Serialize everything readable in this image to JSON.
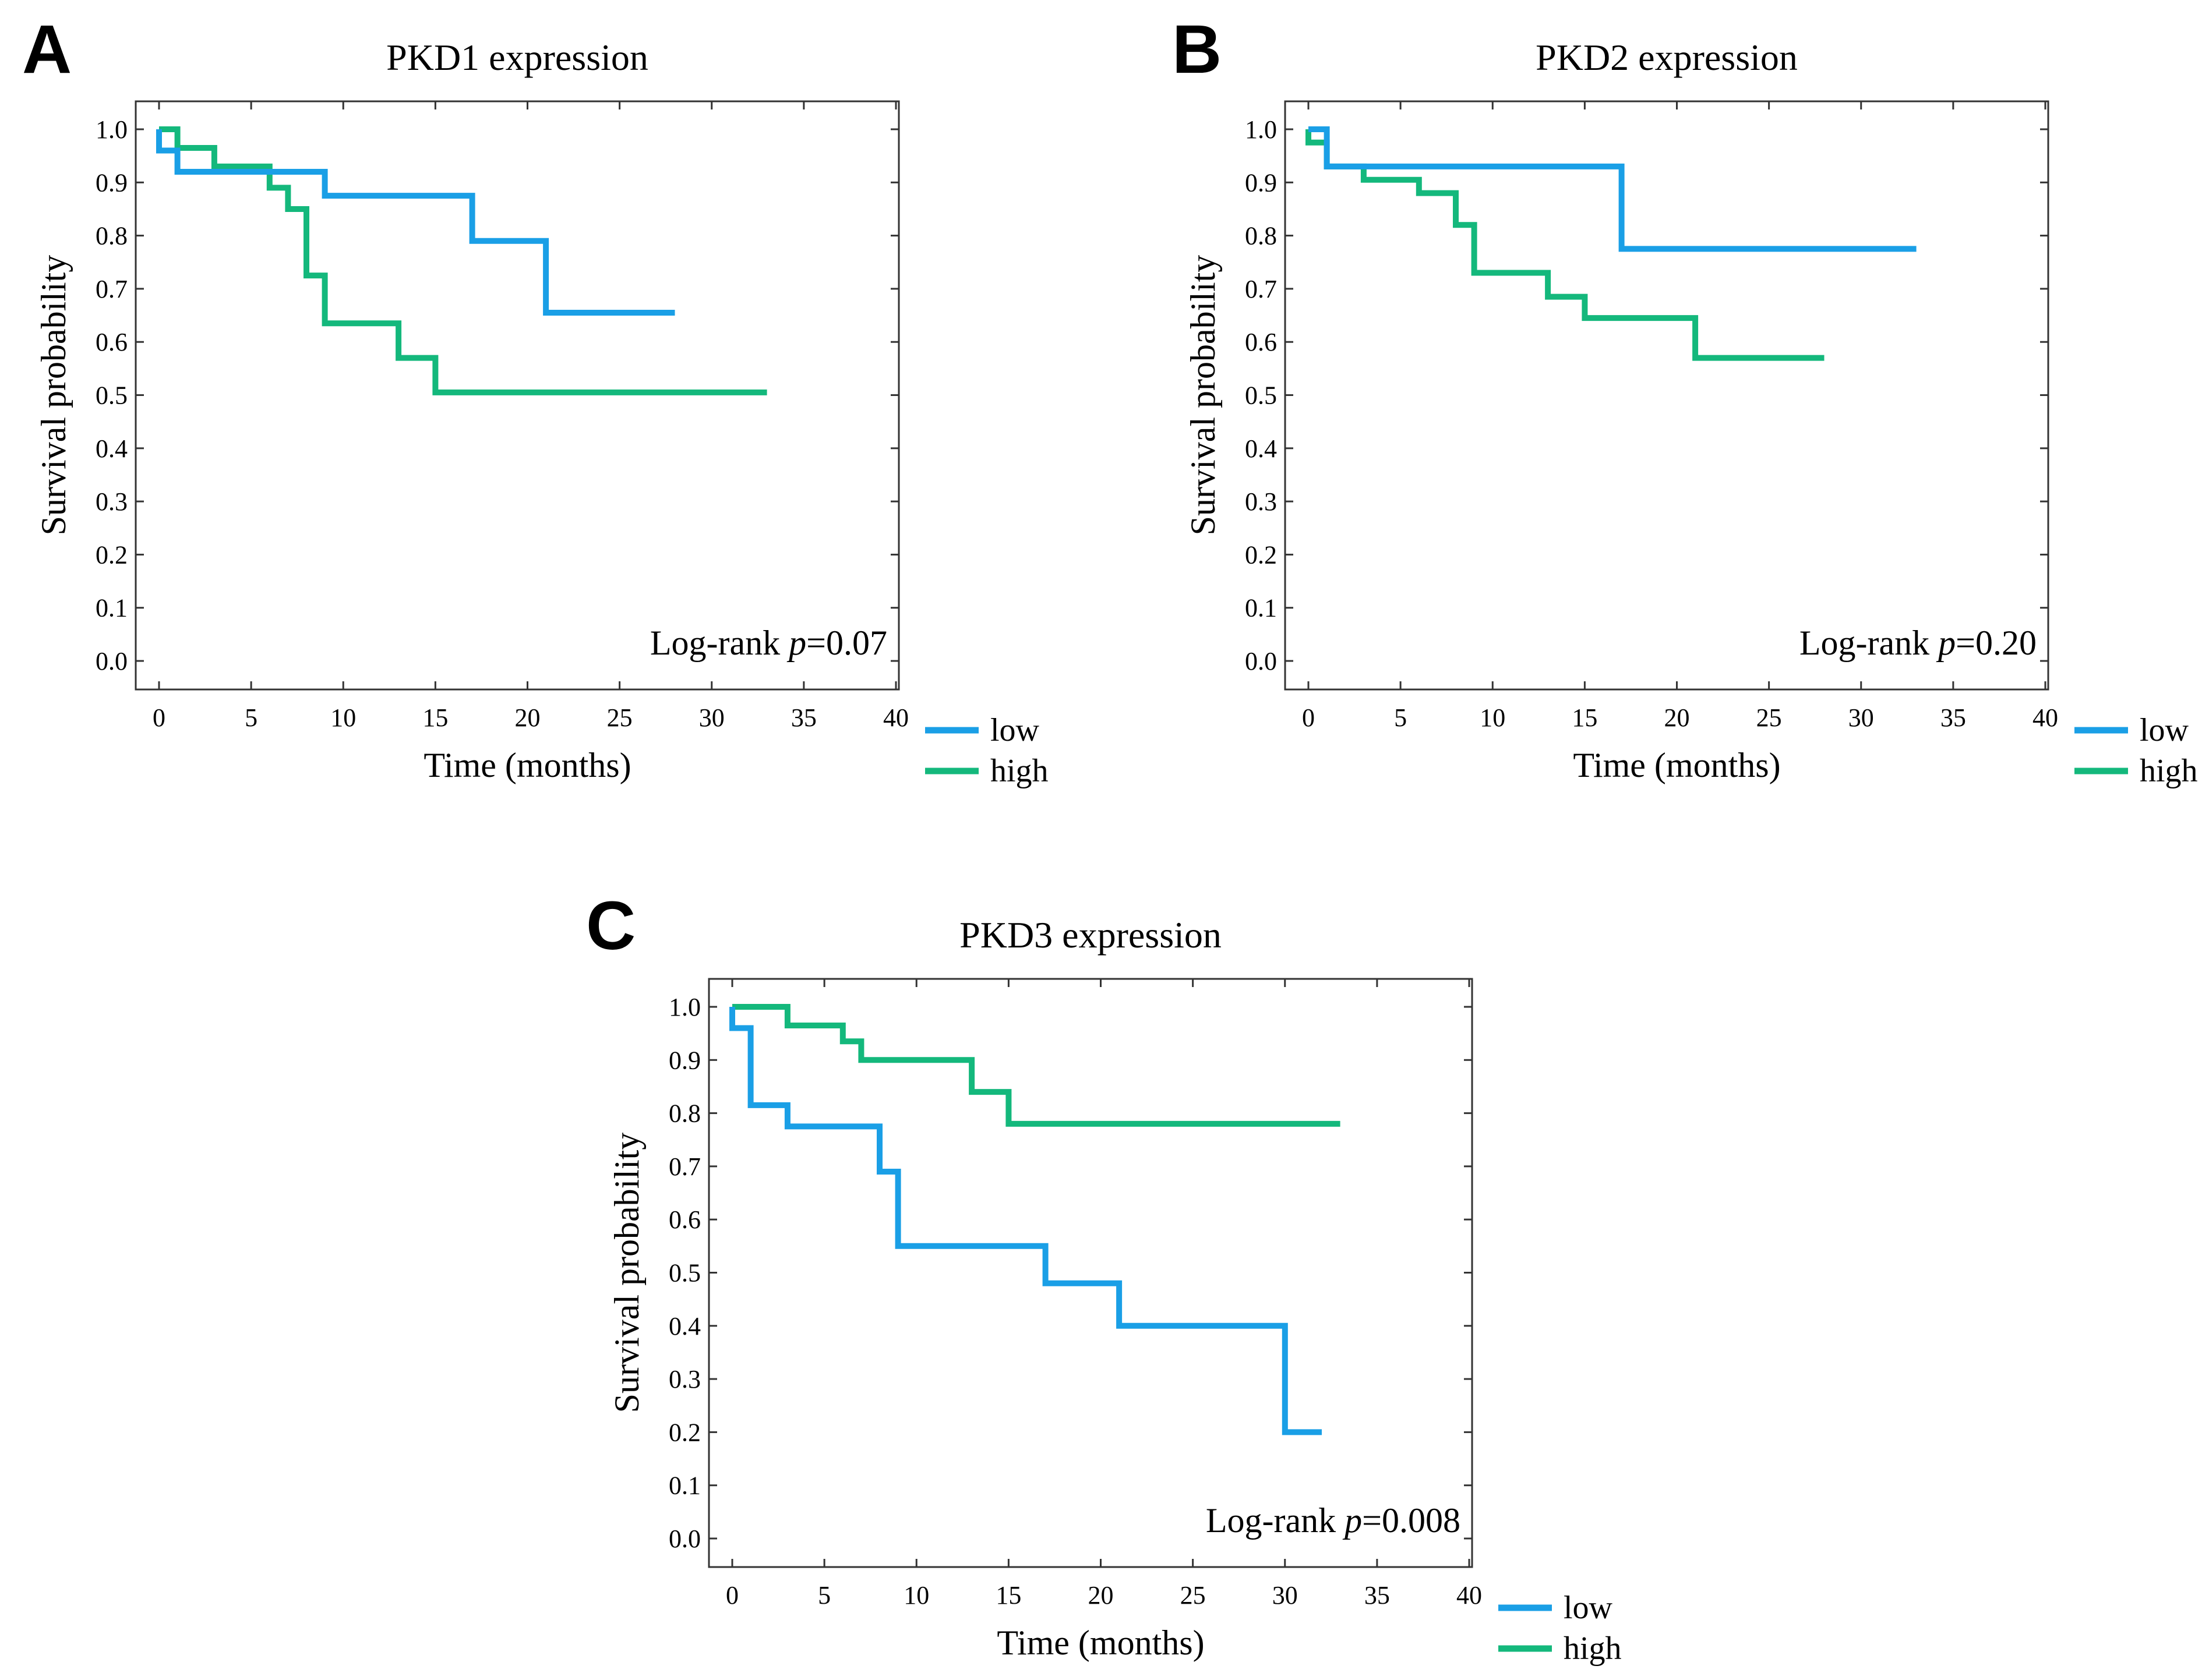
{
  "colors": {
    "low": "#1a9fe6",
    "high": "#14b87c"
  },
  "chart_data": [
    {
      "panel": "A",
      "type": "line",
      "title": "PKD1 expression",
      "xlabel": "Time (months)",
      "ylabel": "Survival probability",
      "xlim": [
        0,
        40
      ],
      "ylim": [
        0,
        1
      ],
      "xticks": [
        "0",
        "5",
        "10",
        "15",
        "20",
        "25",
        "30",
        "35",
        "40"
      ],
      "yticks": [
        "0.0",
        "0.1",
        "0.2",
        "0.3",
        "0.4",
        "0.5",
        "0.6",
        "0.7",
        "0.8",
        "0.9",
        "1.0"
      ],
      "annotation": {
        "prefix": "Log-rank ",
        "p": "p",
        "value": "=0.07"
      },
      "legend": [
        "low",
        "high"
      ],
      "series": [
        {
          "name": "low",
          "x": [
            0,
            0,
            1,
            1,
            9,
            9,
            17,
            17,
            21,
            21,
            28
          ],
          "y": [
            1.0,
            0.96,
            0.96,
            0.92,
            0.92,
            0.875,
            0.875,
            0.79,
            0.79,
            0.655,
            0.655
          ]
        },
        {
          "name": "high",
          "x": [
            0,
            1,
            1,
            3,
            3,
            6,
            6,
            7,
            7,
            8,
            8,
            9,
            9,
            13,
            13,
            15,
            15,
            33
          ],
          "y": [
            1.0,
            1.0,
            0.965,
            0.965,
            0.93,
            0.93,
            0.89,
            0.89,
            0.85,
            0.85,
            0.725,
            0.725,
            0.635,
            0.635,
            0.57,
            0.57,
            0.505,
            0.505
          ]
        }
      ]
    },
    {
      "panel": "B",
      "type": "line",
      "title": "PKD2 expression",
      "xlabel": "Time (months)",
      "ylabel": "Survival probability",
      "xlim": [
        0,
        40
      ],
      "ylim": [
        0,
        1
      ],
      "xticks": [
        "0",
        "5",
        "10",
        "15",
        "20",
        "25",
        "30",
        "35",
        "40"
      ],
      "yticks": [
        "0.0",
        "0.1",
        "0.2",
        "0.3",
        "0.4",
        "0.5",
        "0.6",
        "0.7",
        "0.8",
        "0.9",
        "1.0"
      ],
      "annotation": {
        "prefix": "Log-rank ",
        "p": "p",
        "value": "=0.20"
      },
      "legend": [
        "low",
        "high"
      ],
      "series": [
        {
          "name": "low",
          "x": [
            0,
            1,
            1,
            17,
            17,
            33
          ],
          "y": [
            1.0,
            1.0,
            0.93,
            0.93,
            0.775,
            0.775
          ]
        },
        {
          "name": "high",
          "x": [
            0,
            0,
            1,
            1,
            3,
            3,
            6,
            6,
            8,
            8,
            9,
            9,
            13,
            13,
            15,
            15,
            21,
            21,
            28
          ],
          "y": [
            1.0,
            0.975,
            0.975,
            0.93,
            0.93,
            0.905,
            0.905,
            0.88,
            0.88,
            0.82,
            0.82,
            0.73,
            0.73,
            0.685,
            0.685,
            0.645,
            0.645,
            0.57,
            0.57
          ]
        }
      ]
    },
    {
      "panel": "C",
      "type": "line",
      "title": "PKD3 expression",
      "xlabel": "Time (months)",
      "ylabel": "Survival probability",
      "xlim": [
        0,
        40
      ],
      "ylim": [
        0,
        1
      ],
      "xticks": [
        "0",
        "5",
        "10",
        "15",
        "20",
        "25",
        "30",
        "35",
        "40"
      ],
      "yticks": [
        "0.0",
        "0.1",
        "0.2",
        "0.3",
        "0.4",
        "0.5",
        "0.6",
        "0.7",
        "0.8",
        "0.9",
        "1.0"
      ],
      "annotation": {
        "prefix": "Log-rank ",
        "p": "p",
        "value": "=0.008"
      },
      "legend": [
        "low",
        "high"
      ],
      "series": [
        {
          "name": "low",
          "x": [
            0,
            0,
            1,
            1,
            3,
            3,
            8,
            8,
            9,
            9,
            17,
            17,
            21,
            21,
            30,
            30,
            32
          ],
          "y": [
            1.0,
            0.96,
            0.96,
            0.815,
            0.815,
            0.775,
            0.775,
            0.69,
            0.69,
            0.55,
            0.55,
            0.48,
            0.48,
            0.4,
            0.4,
            0.2,
            0.2
          ]
        },
        {
          "name": "high",
          "x": [
            0,
            3,
            3,
            6,
            6,
            7,
            7,
            13,
            13,
            15,
            15,
            33
          ],
          "y": [
            1.0,
            1.0,
            0.965,
            0.965,
            0.935,
            0.935,
            0.9,
            0.9,
            0.84,
            0.84,
            0.78,
            0.78
          ]
        }
      ]
    }
  ]
}
